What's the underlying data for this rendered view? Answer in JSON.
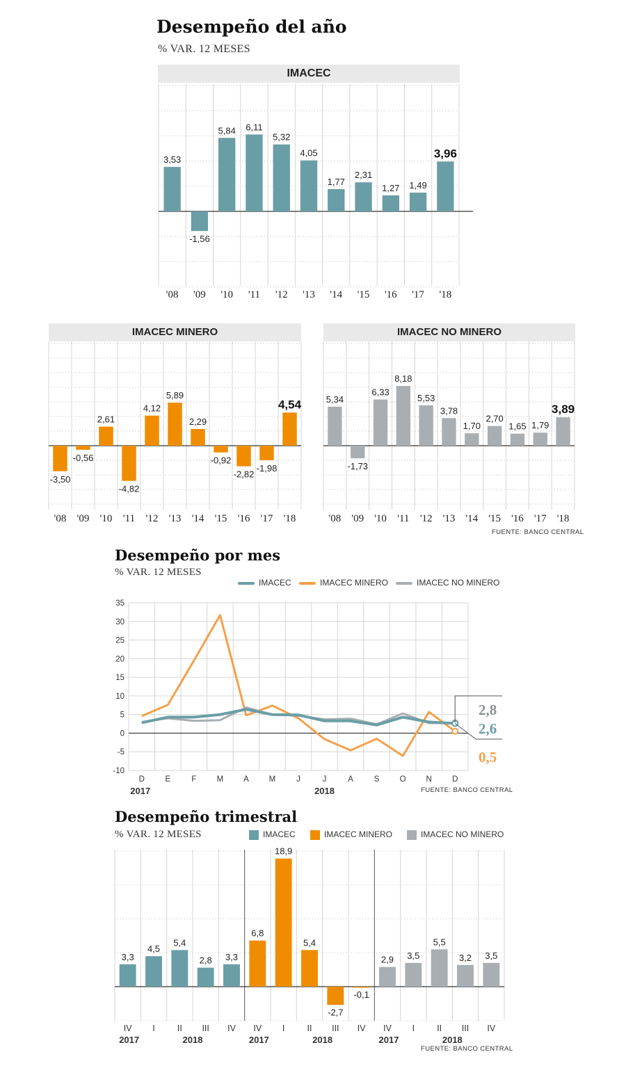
{
  "colors": {
    "imacec": "#6a9ea6",
    "minero": "#f08c00",
    "nominero": "#a8aeb1",
    "minero_line": "#f5a04a",
    "nominero_line": "#a8aeb1"
  },
  "section1": {
    "title": "Desempeño del año",
    "subtitle": "% VAR. 12 MESES"
  },
  "section2": {
    "title": "Desempeño por mes",
    "subtitle": "% VAR. 12 MESES"
  },
  "section3": {
    "title": "Desempeño trimestral",
    "subtitle": "% VAR. 12 MESES"
  },
  "sources": {
    "annual": "FUENTE: BANCO CENTRAL",
    "monthly": "FUENTE: BANCO CENTRAL",
    "quarterly": "FUENTE: BANCO CENTRAL"
  },
  "chart_data": [
    {
      "type": "bar",
      "title": "IMACEC",
      "categories": [
        "'08",
        "'09",
        "'10",
        "'11",
        "'12",
        "'13",
        "'14",
        "'15",
        "'16",
        "'17",
        "'18"
      ],
      "values": [
        3.53,
        -1.56,
        5.84,
        6.11,
        5.32,
        4.05,
        1.77,
        2.31,
        1.27,
        1.49,
        3.96
      ],
      "labels": [
        "3,53",
        "-1,56",
        "5,84",
        "6,11",
        "5,32",
        "4,05",
        "1,77",
        "2,31",
        "1,27",
        "1,49",
        "3,96"
      ],
      "highlight_last": true,
      "color": "#6a9ea6"
    },
    {
      "type": "bar",
      "title": "IMACEC MINERO",
      "categories": [
        "'08",
        "'09",
        "'10",
        "'11",
        "'12",
        "'13",
        "'14",
        "'15",
        "'16",
        "'17",
        "'18"
      ],
      "values": [
        -3.5,
        -0.56,
        2.61,
        -4.82,
        4.12,
        5.89,
        2.29,
        -0.92,
        -2.82,
        -1.98,
        4.54
      ],
      "labels": [
        "-3,50",
        "-0,56",
        "2,61",
        "-4,82",
        "4,12",
        "5,89",
        "2,29",
        "-0,92",
        "-2,82",
        "-1,98",
        "4,54"
      ],
      "highlight_last": true,
      "color": "#f08c00"
    },
    {
      "type": "bar",
      "title": "IMACEC NO MINERO",
      "categories": [
        "'08",
        "'09",
        "'10",
        "'11",
        "'12",
        "'13",
        "'14",
        "'15",
        "'16",
        "'17",
        "'18"
      ],
      "values": [
        5.34,
        -1.73,
        6.33,
        8.18,
        5.53,
        3.78,
        1.7,
        2.7,
        1.65,
        1.79,
        3.89
      ],
      "labels": [
        "5,34",
        "-1,73",
        "6,33",
        "8,18",
        "5,53",
        "3,78",
        "1,70",
        "2,70",
        "1,65",
        "1,79",
        "3,89"
      ],
      "highlight_last": true,
      "color": "#a8aeb1"
    },
    {
      "type": "line",
      "x": [
        "D",
        "E",
        "F",
        "M",
        "A",
        "M",
        "J",
        "J",
        "A",
        "S",
        "O",
        "N",
        "D"
      ],
      "year_labels": [
        "2017",
        "2018"
      ],
      "ylim": [
        -10,
        35
      ],
      "yticks": [
        -10,
        -5,
        0,
        5,
        10,
        15,
        20,
        25,
        30,
        35
      ],
      "series": [
        {
          "name": "IMACEC",
          "values": [
            2.8,
            4.3,
            4.3,
            5.0,
            6.4,
            5.0,
            4.9,
            3.3,
            3.3,
            2.2,
            4.3,
            3.0,
            2.6
          ],
          "end_label": "2,6"
        },
        {
          "name": "IMACEC MINERO",
          "values": [
            4.6,
            7.6,
            19.5,
            31.7,
            4.8,
            7.4,
            4.0,
            -1.6,
            -4.6,
            -1.5,
            -6.1,
            5.7,
            0.5
          ],
          "end_label": "0,5"
        },
        {
          "name": "IMACEC NO MINERO",
          "values": [
            3.0,
            4.0,
            3.3,
            3.5,
            6.9,
            5.0,
            4.7,
            3.7,
            3.9,
            2.4,
            5.3,
            2.7,
            2.8
          ],
          "end_label": "2,8"
        }
      ]
    },
    {
      "type": "bar",
      "legend": [
        "IMACEC",
        "IMACEC MINERO",
        "IMACEC NO MINERO"
      ],
      "groups": [
        {
          "name": "IMACEC",
          "categories": [
            "IV",
            "I",
            "II",
            "III",
            "IV"
          ],
          "values": [
            3.3,
            4.5,
            5.4,
            2.8,
            3.3
          ],
          "labels": [
            "3,3",
            "4,5",
            "5,4",
            "2,8",
            "3,3"
          ]
        },
        {
          "name": "IMACEC MINERO",
          "categories": [
            "IV",
            "I",
            "II",
            "III",
            "IV"
          ],
          "values": [
            6.8,
            18.9,
            5.4,
            -2.7,
            -0.1
          ],
          "labels": [
            "6,8",
            "18,9",
            "5,4",
            "-2,7",
            "-0,1"
          ]
        },
        {
          "name": "IMACEC NO MINERO",
          "categories": [
            "IV",
            "I",
            "II",
            "III",
            "IV"
          ],
          "values": [
            2.9,
            3.5,
            5.5,
            3.2,
            3.5
          ],
          "labels": [
            "2,9",
            "3,5",
            "5,5",
            "3,2",
            "3,5"
          ]
        }
      ],
      "year_labels": [
        "2017",
        "2018"
      ]
    }
  ]
}
